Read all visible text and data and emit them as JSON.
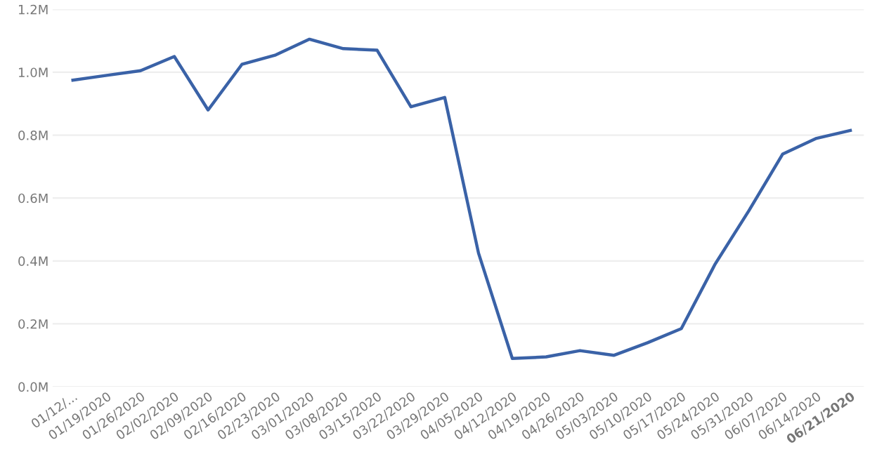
{
  "chart_data": {
    "type": "line",
    "categories": [
      "01/12/...",
      "01/19/2020",
      "01/26/2020",
      "02/02/2020",
      "02/09/2020",
      "02/16/2020",
      "02/23/2020",
      "03/01/2020",
      "03/08/2020",
      "03/15/2020",
      "03/22/2020",
      "03/29/2020",
      "04/05/2020",
      "04/12/2020",
      "04/19/2020",
      "04/26/2020",
      "05/03/2020",
      "05/10/2020",
      "05/17/2020",
      "05/24/2020",
      "05/31/2020",
      "06/07/2020",
      "06/14/2020",
      "06/21/2020"
    ],
    "series": [
      {
        "color": "#3a62a7",
        "values": [
          0.975,
          0.99,
          1.005,
          1.05,
          0.88,
          1.025,
          1.055,
          1.105,
          1.075,
          1.07,
          0.89,
          0.92,
          0.425,
          0.09,
          0.095,
          0.115,
          0.1,
          0.14,
          0.185,
          0.39,
          0.56,
          0.74,
          0.79,
          0.815
        ]
      }
    ],
    "ylim": [
      0,
      1.2
    ],
    "yticks": [
      {
        "value": 0,
        "label": "0.0M"
      },
      {
        "value": 0.2,
        "label": "0.2M"
      },
      {
        "value": 0.4,
        "label": "0.4M"
      },
      {
        "value": 0.6,
        "label": "0.6M"
      },
      {
        "value": 0.8,
        "label": "0.8M"
      },
      {
        "value": 1.0,
        "label": "1.0M"
      },
      {
        "value": 1.2,
        "label": "1.2M"
      }
    ],
    "grid": "y",
    "line_style": "solid"
  }
}
